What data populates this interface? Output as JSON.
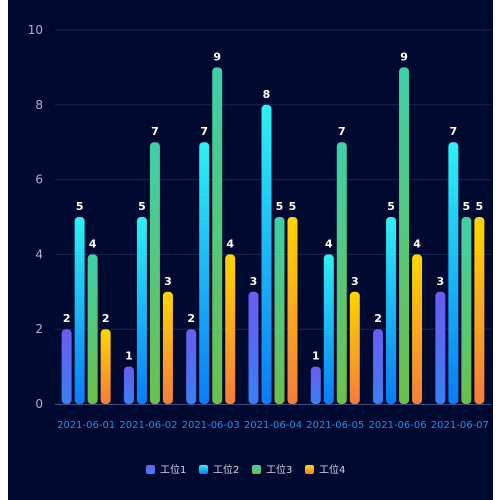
{
  "chart_data": {
    "type": "bar",
    "categories": [
      "2021-06-01",
      "2021-06-02",
      "2021-06-03",
      "2021-06-04",
      "2021-06-05",
      "2021-06-06",
      "2021-06-07"
    ],
    "series": [
      {
        "name": "工位1",
        "values": [
          2,
          1,
          2,
          3,
          1,
          2,
          3
        ],
        "colors": [
          "#6a5cf0",
          "#3b7ff2"
        ]
      },
      {
        "name": "工位2",
        "values": [
          5,
          5,
          7,
          8,
          4,
          5,
          7
        ],
        "colors": [
          "#2ef0f2",
          "#0a7cf7"
        ]
      },
      {
        "name": "工位3",
        "values": [
          4,
          7,
          9,
          5,
          7,
          9,
          5
        ],
        "colors": [
          "#3fcfa8",
          "#6cc04a"
        ]
      },
      {
        "name": "工位4",
        "values": [
          2,
          3,
          4,
          5,
          3,
          4,
          5
        ],
        "colors": [
          "#ffd500",
          "#f57c3c"
        ]
      }
    ],
    "ylim": [
      0,
      10
    ],
    "yticks": [
      0,
      2,
      4,
      6,
      8,
      10
    ],
    "grid": true,
    "legend": "bottom-center"
  }
}
